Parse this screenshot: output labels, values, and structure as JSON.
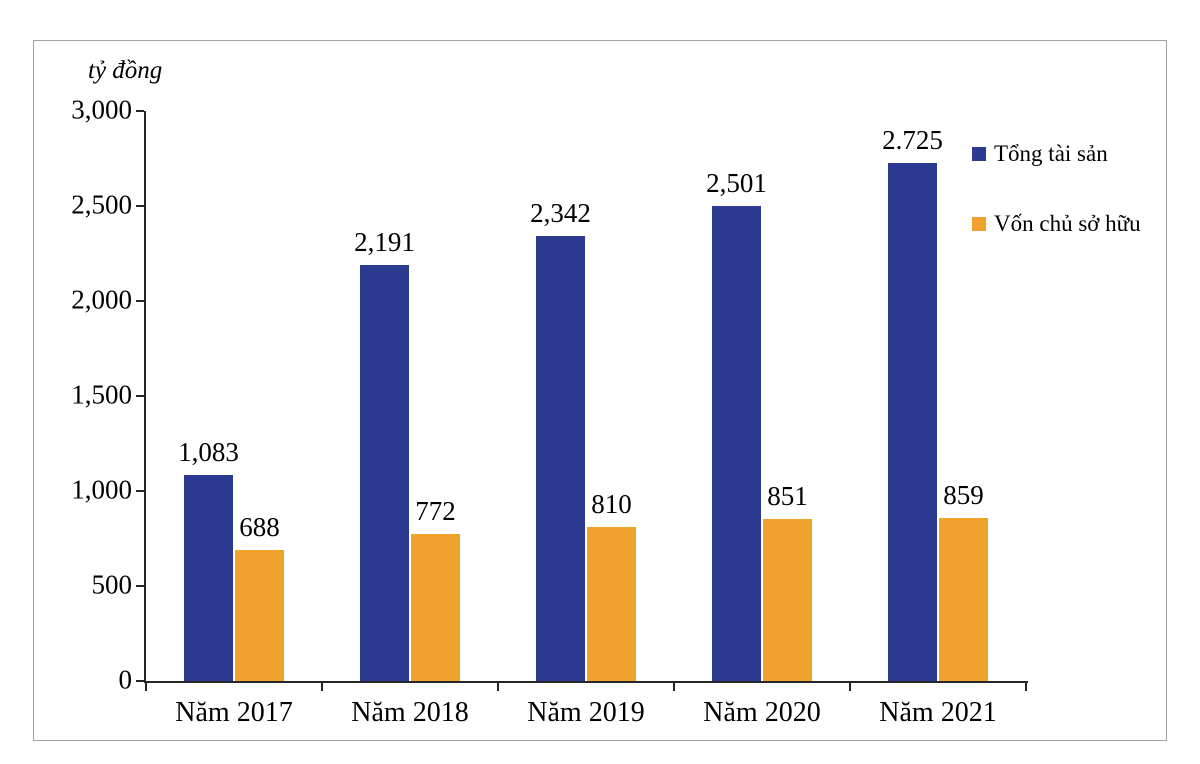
{
  "chart_data": {
    "type": "bar",
    "title": "",
    "unit_label": "tỷ đồng",
    "categories": [
      "Năm 2017",
      "Năm 2018",
      "Năm 2019",
      "Năm 2020",
      "Năm 2021"
    ],
    "series": [
      {
        "name": "Tổng tài sản",
        "color": "#2d3a92",
        "values": [
          1083,
          2191,
          2342,
          2501,
          2725
        ],
        "labels": [
          "1,083",
          "2,191",
          "2,342",
          "2,501",
          "2.725"
        ]
      },
      {
        "name": "Vốn chủ sở hữu",
        "color": "#f0a32c",
        "values": [
          688,
          772,
          810,
          851,
          859
        ],
        "labels": [
          "688",
          "772",
          "810",
          "851",
          "859"
        ]
      }
    ],
    "ylim": [
      0,
      3000
    ],
    "yticks": [
      0,
      500,
      1000,
      1500,
      2000,
      2500,
      3000
    ],
    "ytick_labels": [
      "0",
      "500",
      "1,000",
      "1,500",
      "2,000",
      "2,500",
      "3,000"
    ],
    "grid": false,
    "legend_position": "top-right"
  }
}
